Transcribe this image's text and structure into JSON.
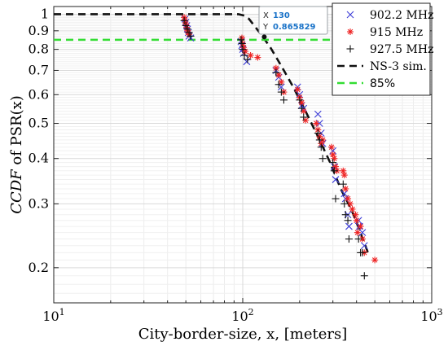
{
  "chart_data": {
    "type": "scatter",
    "xlabel": "City-border-size, x, [meters]",
    "ylabel_italic": "CCDF",
    "ylabel_rest": " of PSR(x)",
    "xscale": "log",
    "yscale": "log",
    "xlim": [
      10,
      1000
    ],
    "ylim": [
      0.16,
      1.05
    ],
    "grid": true,
    "legend_position": "top-right",
    "x_ticks": [
      {
        "value": 10,
        "base": "10",
        "exp": "1"
      },
      {
        "value": 100,
        "base": "10",
        "exp": "2"
      },
      {
        "value": 1000,
        "base": "10",
        "exp": "3"
      }
    ],
    "y_ticks": [
      {
        "value": 0.2,
        "label": "0.2"
      },
      {
        "value": 0.3,
        "label": "0.3"
      },
      {
        "value": 0.4,
        "label": "0.4"
      },
      {
        "value": 0.5,
        "label": "0.5"
      },
      {
        "value": 0.6,
        "label": "0.6"
      },
      {
        "value": 0.7,
        "label": "0.7"
      },
      {
        "value": 0.8,
        "label": "0.8"
      },
      {
        "value": 0.9,
        "label": "0.9"
      },
      {
        "value": 1,
        "label": "1"
      }
    ],
    "series": [
      {
        "name": "902.2 MHz",
        "marker": "x",
        "color": "#3b3bd6",
        "points": [
          [
            49.5,
            0.97
          ],
          [
            50,
            0.95
          ],
          [
            50.5,
            0.93
          ],
          [
            51,
            0.91
          ],
          [
            51.5,
            0.89
          ],
          [
            52,
            0.87
          ],
          [
            53,
            0.86
          ],
          [
            98,
            0.84
          ],
          [
            99,
            0.82
          ],
          [
            100,
            0.8
          ],
          [
            101,
            0.78
          ],
          [
            105,
            0.74
          ],
          [
            150,
            0.7
          ],
          [
            155,
            0.67
          ],
          [
            160,
            0.63
          ],
          [
            195,
            0.63
          ],
          [
            200,
            0.6
          ],
          [
            205,
            0.56
          ],
          [
            210,
            0.55
          ],
          [
            250,
            0.53
          ],
          [
            255,
            0.5
          ],
          [
            260,
            0.47
          ],
          [
            265,
            0.44
          ],
          [
            300,
            0.42
          ],
          [
            305,
            0.38
          ],
          [
            310,
            0.35
          ],
          [
            345,
            0.32
          ],
          [
            350,
            0.31
          ],
          [
            360,
            0.28
          ],
          [
            365,
            0.26
          ],
          [
            410,
            0.27
          ],
          [
            415,
            0.26
          ],
          [
            430,
            0.25
          ],
          [
            440,
            0.23
          ]
        ]
      },
      {
        "name": "915 MHz",
        "marker": "star",
        "color": "#ee2222",
        "points": [
          [
            49,
            0.98
          ],
          [
            49.5,
            0.96
          ],
          [
            50,
            0.94
          ],
          [
            50.5,
            0.92
          ],
          [
            51,
            0.9
          ],
          [
            51.5,
            0.89
          ],
          [
            52,
            0.88
          ],
          [
            99,
            0.86
          ],
          [
            100,
            0.83
          ],
          [
            101,
            0.81
          ],
          [
            103,
            0.79
          ],
          [
            110,
            0.77
          ],
          [
            120,
            0.76
          ],
          [
            150,
            0.71
          ],
          [
            155,
            0.68
          ],
          [
            160,
            0.65
          ],
          [
            165,
            0.61
          ],
          [
            195,
            0.62
          ],
          [
            200,
            0.59
          ],
          [
            205,
            0.57
          ],
          [
            210,
            0.54
          ],
          [
            215,
            0.51
          ],
          [
            245,
            0.5
          ],
          [
            250,
            0.48
          ],
          [
            255,
            0.46
          ],
          [
            260,
            0.44
          ],
          [
            265,
            0.45
          ],
          [
            295,
            0.43
          ],
          [
            300,
            0.41
          ],
          [
            305,
            0.4
          ],
          [
            310,
            0.38
          ],
          [
            315,
            0.37
          ],
          [
            340,
            0.37
          ],
          [
            345,
            0.36
          ],
          [
            350,
            0.33
          ],
          [
            360,
            0.31
          ],
          [
            370,
            0.3
          ],
          [
            380,
            0.29
          ],
          [
            395,
            0.28
          ],
          [
            400,
            0.27
          ],
          [
            405,
            0.25
          ],
          [
            420,
            0.26
          ],
          [
            430,
            0.24
          ],
          [
            440,
            0.22
          ],
          [
            500,
            0.21
          ]
        ]
      },
      {
        "name": "927.5 MHz",
        "marker": "plus",
        "color": "#111111",
        "points": [
          [
            49,
            0.96
          ],
          [
            50,
            0.93
          ],
          [
            51,
            0.91
          ],
          [
            52,
            0.89
          ],
          [
            53,
            0.87
          ],
          [
            98,
            0.85
          ],
          [
            99,
            0.83
          ],
          [
            100,
            0.8
          ],
          [
            102,
            0.77
          ],
          [
            106,
            0.75
          ],
          [
            150,
            0.69
          ],
          [
            155,
            0.64
          ],
          [
            160,
            0.61
          ],
          [
            165,
            0.58
          ],
          [
            200,
            0.58
          ],
          [
            205,
            0.55
          ],
          [
            210,
            0.52
          ],
          [
            250,
            0.47
          ],
          [
            255,
            0.45
          ],
          [
            260,
            0.43
          ],
          [
            265,
            0.4
          ],
          [
            300,
            0.39
          ],
          [
            305,
            0.37
          ],
          [
            310,
            0.31
          ],
          [
            340,
            0.34
          ],
          [
            345,
            0.3
          ],
          [
            350,
            0.28
          ],
          [
            360,
            0.27
          ],
          [
            365,
            0.24
          ],
          [
            410,
            0.24
          ],
          [
            420,
            0.22
          ],
          [
            430,
            0.22
          ],
          [
            440,
            0.19
          ]
        ]
      }
    ],
    "lines": [
      {
        "name": "NS-3 sim.",
        "color": "#111111",
        "dash": "dashed",
        "points": [
          [
            10,
            1
          ],
          [
            20,
            1
          ],
          [
            40,
            1
          ],
          [
            70,
            1
          ],
          [
            95,
            1
          ],
          [
            103,
            0.99
          ],
          [
            108,
            0.97
          ],
          [
            115,
            0.93
          ],
          [
            125,
            0.88
          ],
          [
            140,
            0.81
          ],
          [
            160,
            0.72
          ],
          [
            185,
            0.63
          ],
          [
            215,
            0.54
          ],
          [
            250,
            0.46
          ],
          [
            290,
            0.39
          ],
          [
            330,
            0.33
          ],
          [
            375,
            0.29
          ],
          [
            420,
            0.25
          ],
          [
            460,
            0.22
          ]
        ]
      },
      {
        "name": "85%",
        "color": "#33dd33",
        "dash": "dashed",
        "points": [
          [
            10,
            0.85
          ],
          [
            1000,
            0.85
          ]
        ]
      }
    ],
    "datatip": {
      "x_label": "X",
      "x_value": "130",
      "y_label": "Y",
      "y_value": "0.865829",
      "point": [
        130,
        0.865829
      ]
    }
  }
}
